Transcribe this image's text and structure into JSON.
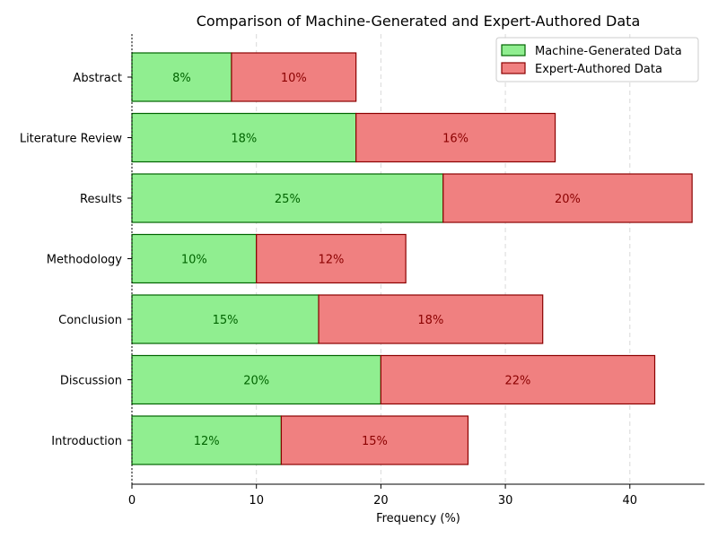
{
  "chart_data": {
    "type": "bar",
    "orientation": "horizontal",
    "stacked": true,
    "title": "Comparison of Machine-Generated and Expert-Authored Data",
    "xlabel": "Frequency (%)",
    "ylabel": "",
    "xlim": [
      0,
      46
    ],
    "xticks": [
      0,
      10,
      20,
      30,
      40
    ],
    "grid": "x, dashed",
    "legend_position": "top-right",
    "categories": [
      "Introduction",
      "Discussion",
      "Conclusion",
      "Methodology",
      "Results",
      "Literature Review",
      "Abstract"
    ],
    "series": [
      {
        "name": "Machine-Generated Data",
        "values": [
          12,
          20,
          15,
          10,
          25,
          18,
          8
        ],
        "labels": [
          "12%",
          "20%",
          "15%",
          "10%",
          "25%",
          "18%",
          "8%"
        ],
        "fill": "#90ee90",
        "edge": "#006400",
        "label_color": "#006400"
      },
      {
        "name": "Expert-Authored Data",
        "values": [
          15,
          22,
          18,
          12,
          20,
          16,
          10
        ],
        "labels": [
          "15%",
          "22%",
          "18%",
          "12%",
          "20%",
          "16%",
          "10%"
        ],
        "fill": "#f08080",
        "edge": "#8b0000",
        "label_color": "#8b0000"
      }
    ]
  }
}
